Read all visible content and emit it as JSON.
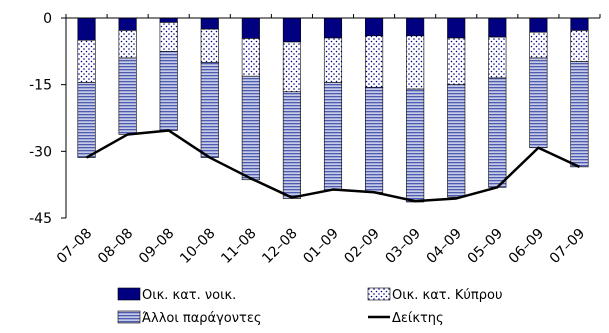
{
  "chart_data": {
    "type": "bar",
    "stacked": true,
    "categories": [
      "07–08",
      "08–08",
      "09–08",
      "10–08",
      "11–08",
      "12–08",
      "01–09",
      "02–09",
      "03–09",
      "04–09",
      "05–09",
      "06–09",
      "07–09"
    ],
    "ylim": [
      -45,
      0
    ],
    "yticks": [
      0,
      -15,
      -30,
      -45
    ],
    "ytick_labels": [
      "0",
      "-15",
      "-30",
      "-45"
    ],
    "grid": false,
    "legend_position": "bottom",
    "series": [
      {
        "name": "Οικ. κατ. νοικ.",
        "kind": "bar",
        "color": "#000080",
        "pattern": "solid",
        "values": [
          -5.0,
          -2.8,
          -1.0,
          -2.5,
          -4.6,
          -5.4,
          -4.5,
          -4.0,
          -4.0,
          -4.5,
          -4.3,
          -3.2,
          -2.8
        ]
      },
      {
        "name": "Οικ. κατ. Κύπρου",
        "kind": "bar",
        "color": "#000080",
        "pattern": "dots",
        "values": [
          -9.5,
          -6.2,
          -6.5,
          -7.5,
          -8.5,
          -11.2,
          -10.0,
          -11.6,
          -12.0,
          -10.5,
          -9.2,
          -5.8,
          -7.0
        ]
      },
      {
        "name": "Άλλοι παράγοντες",
        "kind": "bar",
        "color": "#4d5bb0",
        "pattern": "hstripes",
        "values": [
          -16.9,
          -17.2,
          -17.8,
          -21.4,
          -23.3,
          -24.0,
          -24.2,
          -23.7,
          -25.4,
          -25.3,
          -24.6,
          -20.2,
          -23.7
        ]
      },
      {
        "name": "Δείκτης",
        "kind": "line",
        "color": "#000000",
        "values": [
          -31.4,
          -26.2,
          -25.3,
          -31.4,
          -36.1,
          -40.4,
          -38.6,
          -39.2,
          -41.2,
          -40.6,
          -38.1,
          -29.2,
          -33.5
        ]
      }
    ]
  }
}
